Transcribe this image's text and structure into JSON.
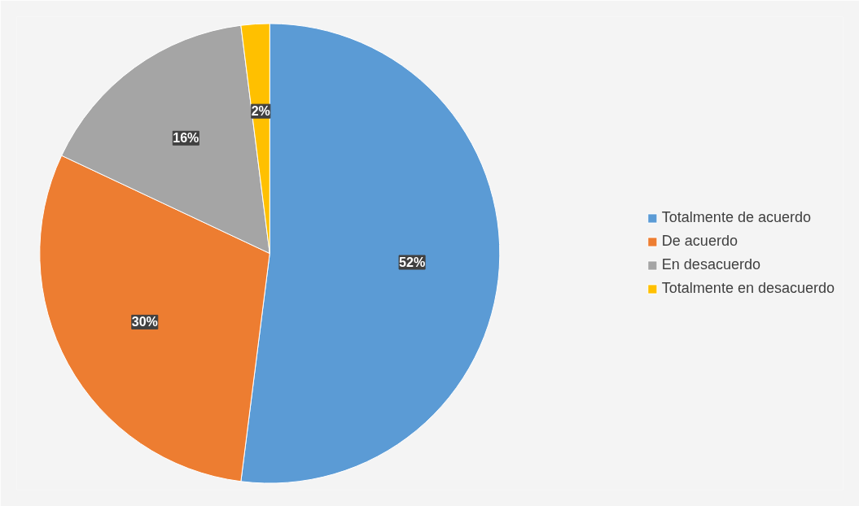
{
  "chart_data": {
    "type": "pie",
    "categories": [
      "Totalmente de acuerdo",
      "De acuerdo",
      "En desacuerdo",
      "Totalmente en desacuerdo"
    ],
    "values": [
      52,
      30,
      16,
      2
    ],
    "colors": [
      "#5b9bd5",
      "#ed7d31",
      "#a5a5a5",
      "#ffc000"
    ],
    "value_labels": [
      "52%",
      "30%",
      "16%",
      "2%"
    ],
    "legend": "right"
  }
}
